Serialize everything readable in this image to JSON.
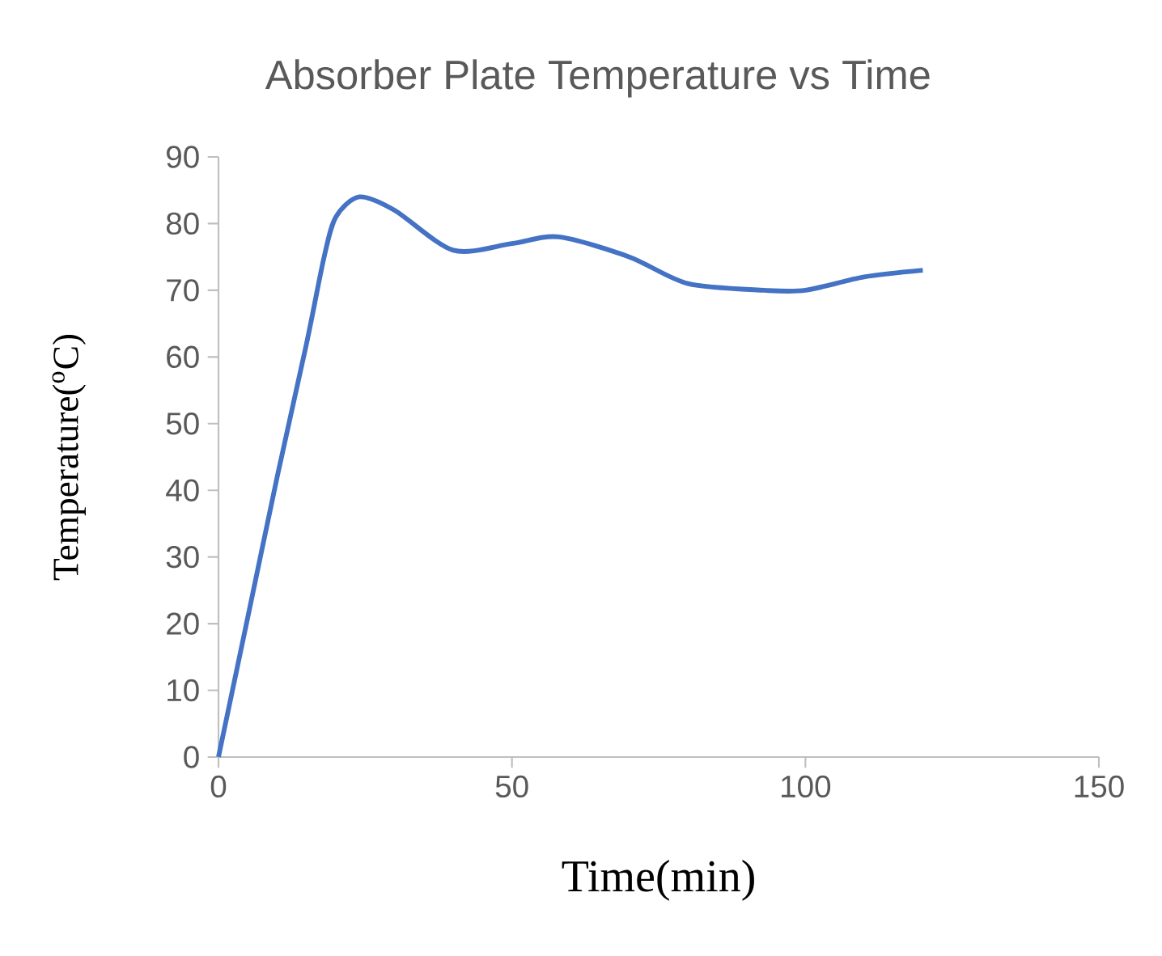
{
  "chart_data": {
    "type": "line",
    "title": "Absorber Plate Temperature vs Time",
    "xlabel": "Time(min)",
    "ylabel": "Temperature($^{o}$C)",
    "series": [
      {
        "color": "#4472c4",
        "x": [
          0,
          5,
          10,
          15,
          18,
          20,
          24,
          30,
          40,
          50,
          58,
          70,
          80,
          93,
          100,
          110,
          120
        ],
        "values": [
          0,
          21,
          42,
          62,
          75,
          81,
          84,
          82,
          76,
          77,
          78,
          75,
          71,
          70,
          70,
          72,
          73
        ]
      }
    ],
    "xlim": [
      0,
      150
    ],
    "xticks": [
      0,
      50,
      100,
      150
    ],
    "ylim": [
      0,
      90
    ],
    "yticks": [
      0,
      10,
      20,
      30,
      40,
      50,
      60,
      70,
      80,
      90
    ],
    "grid": false,
    "marker": "none",
    "line_style": "solid"
  }
}
